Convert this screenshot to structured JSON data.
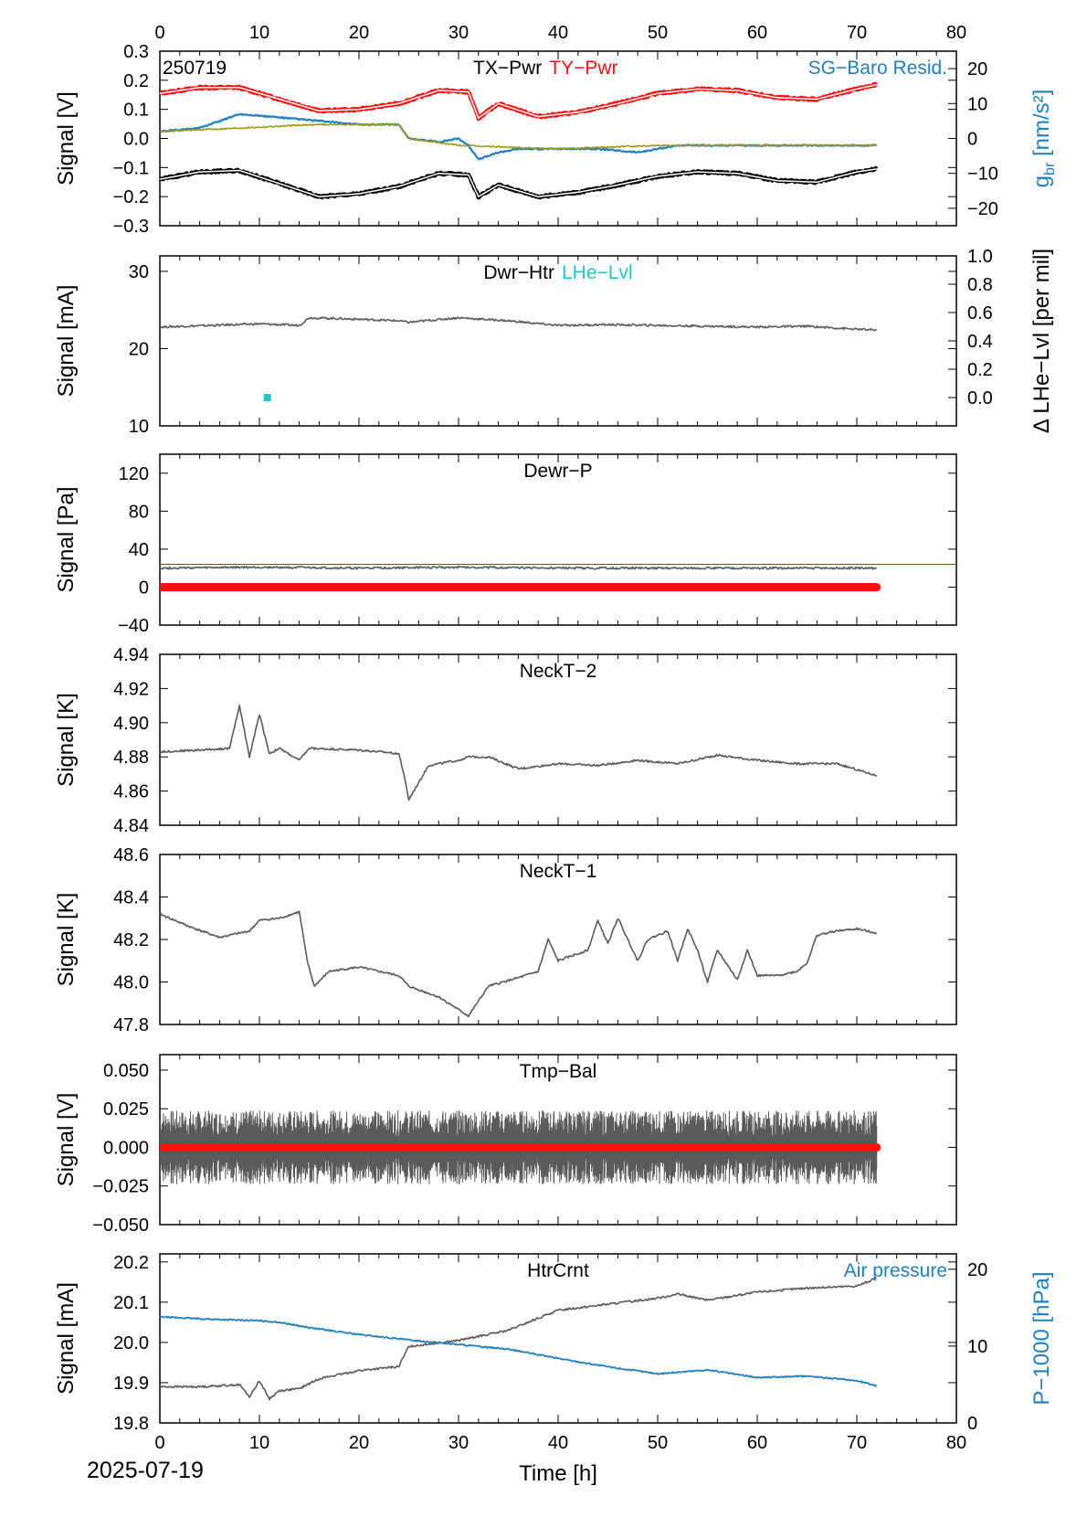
{
  "footer": {
    "date": "2025-07-19"
  },
  "colors": {
    "black": "#000000",
    "gray": "#5a5a5a",
    "red": "#ff1010",
    "blue": "#1f7fbf",
    "cyan": "#1ec8c8",
    "olive": "#9a9a1a"
  },
  "chart_data": [
    {
      "id": "p1",
      "type": "line",
      "tag": "250719",
      "titles": [
        {
          "text": "TX−Pwr",
          "color": "black"
        },
        {
          "text": "TY−Pwr",
          "color": "red"
        }
      ],
      "right_title": {
        "text": "SG−Baro Resid.",
        "color": "blue"
      },
      "ylabel": "Signal [V]",
      "ylim": [
        -0.3,
        0.3
      ],
      "yticks": [
        "−0.3",
        "−0.2",
        "−0.1",
        "0.0",
        "0.1",
        "0.2",
        "0.3"
      ],
      "y2label_main": "g",
      "y2label_sub": "br",
      "y2label_unit": " [nm/s²]",
      "y2lim": [
        -25,
        25
      ],
      "y2ticks": [
        "−20",
        "−10",
        "0",
        "10",
        "20"
      ],
      "xlim": [
        0,
        80
      ],
      "series": [
        {
          "name": "TY−Pwr",
          "color": "red",
          "axis": "left",
          "x": [
            0,
            4,
            8,
            12,
            16,
            20,
            24,
            28,
            31,
            32,
            34,
            38,
            42,
            46,
            50,
            54,
            58,
            62,
            66,
            70,
            72
          ],
          "y": [
            0.155,
            0.175,
            0.175,
            0.135,
            0.095,
            0.1,
            0.12,
            0.165,
            0.16,
            0.07,
            0.12,
            0.075,
            0.09,
            0.12,
            0.155,
            0.17,
            0.165,
            0.14,
            0.135,
            0.17,
            0.185
          ]
        },
        {
          "name": "TX−Pwr",
          "color": "black",
          "axis": "left",
          "x": [
            0,
            4,
            8,
            12,
            16,
            20,
            24,
            28,
            31,
            32,
            34,
            38,
            42,
            46,
            50,
            54,
            58,
            62,
            66,
            70,
            72
          ],
          "y": [
            -0.14,
            -0.115,
            -0.11,
            -0.155,
            -0.2,
            -0.19,
            -0.165,
            -0.12,
            -0.125,
            -0.2,
            -0.16,
            -0.2,
            -0.185,
            -0.16,
            -0.13,
            -0.115,
            -0.12,
            -0.145,
            -0.15,
            -0.115,
            -0.105
          ]
        },
        {
          "name": "SG−Baro Resid.",
          "color": "blue",
          "axis": "right",
          "x": [
            0,
            4,
            8,
            12,
            16,
            20,
            24,
            25,
            28,
            30,
            31,
            32,
            34,
            36,
            40,
            44,
            48,
            52,
            56,
            60,
            64,
            68,
            72
          ],
          "y": [
            2,
            3,
            7,
            6,
            5,
            4,
            4,
            0,
            -1,
            0,
            -2,
            -6,
            -4,
            -3,
            -3,
            -3,
            -4,
            -2,
            -2,
            -2,
            -2,
            -2,
            -2
          ]
        },
        {
          "name": "",
          "color": "olive",
          "axis": "right",
          "x": [
            0,
            8,
            16,
            24,
            25,
            30,
            40,
            50,
            60,
            72
          ],
          "y": [
            2,
            3,
            4,
            4,
            0,
            -2,
            -3,
            -2,
            -2,
            -2
          ]
        }
      ]
    },
    {
      "id": "p2",
      "type": "line",
      "titles": [
        {
          "text": "Dwr−Htr",
          "color": "black"
        },
        {
          "text": "LHe−Lvl",
          "color": "cyan"
        }
      ],
      "ylabel": "Signal [mA]",
      "ylim": [
        10,
        32
      ],
      "yticks": [
        "10",
        "20",
        "30"
      ],
      "y2label": "Δ LHe−Lvl [per mil]",
      "y2lim": [
        -0.2,
        1.0
      ],
      "y2ticks": [
        "0.0",
        "0.2",
        "0.4",
        "0.6",
        "0.8",
        "1.0"
      ],
      "xlim": [
        0,
        80
      ],
      "series": [
        {
          "name": "Dwr−Htr",
          "color": "gray",
          "axis": "left",
          "x": [
            0,
            5,
            10,
            14,
            15,
            20,
            24,
            25,
            30,
            35,
            40,
            45,
            50,
            55,
            60,
            65,
            70,
            72
          ],
          "y": [
            22.8,
            23.0,
            23.2,
            23.0,
            24.0,
            23.8,
            23.6,
            23.4,
            24.0,
            23.6,
            23.0,
            23.1,
            23.0,
            22.9,
            22.8,
            22.9,
            22.5,
            22.4
          ]
        },
        {
          "name": "LHe−Lvl",
          "color": "cyan",
          "axis": "right",
          "x": [
            10.8
          ],
          "y": [
            0.0
          ]
        }
      ]
    },
    {
      "id": "p3",
      "type": "line",
      "titles": [
        {
          "text": "Dewr−P",
          "color": "black"
        }
      ],
      "ylabel": "Signal [Pa]",
      "ylim": [
        -40,
        140
      ],
      "yticks": [
        "−40",
        "0",
        "40",
        "80",
        "120"
      ],
      "xlim": [
        0,
        80
      ],
      "series": [
        {
          "name": "Dewr−P",
          "color": "gray",
          "axis": "left",
          "x": [
            0,
            10,
            20,
            30,
            40,
            50,
            60,
            72
          ],
          "y": [
            20,
            21,
            20,
            21,
            20,
            20,
            20,
            20
          ]
        },
        {
          "name": "",
          "color": "red",
          "axis": "left",
          "x": [
            0,
            72
          ],
          "y": [
            0,
            0
          ]
        }
      ],
      "reference_y": 24
    },
    {
      "id": "p4",
      "type": "line",
      "titles": [
        {
          "text": "NeckT−2",
          "color": "black"
        }
      ],
      "ylabel": "Signal [K]",
      "ylim": [
        4.84,
        4.94
      ],
      "yticks": [
        "4.84",
        "4.86",
        "4.88",
        "4.90",
        "4.92",
        "4.94"
      ],
      "xlim": [
        0,
        80
      ],
      "series": [
        {
          "name": "NeckT−2",
          "color": "gray",
          "axis": "left",
          "x": [
            0,
            4,
            7,
            8,
            9,
            10,
            11,
            12,
            14,
            15,
            20,
            24,
            24.5,
            25,
            27,
            30,
            31,
            33,
            36,
            40,
            44,
            48,
            52,
            56,
            60,
            64,
            68,
            72
          ],
          "y": [
            4.883,
            4.884,
            4.885,
            4.91,
            4.88,
            4.905,
            4.882,
            4.885,
            4.878,
            4.885,
            4.884,
            4.882,
            4.87,
            4.855,
            4.875,
            4.878,
            4.88,
            4.88,
            4.873,
            4.876,
            4.875,
            4.878,
            4.876,
            4.881,
            4.878,
            4.876,
            4.876,
            4.869
          ]
        }
      ]
    },
    {
      "id": "p5",
      "type": "line",
      "titles": [
        {
          "text": "NeckT−1",
          "color": "black"
        }
      ],
      "ylabel": "Signal [K]",
      "ylim": [
        47.8,
        48.6
      ],
      "yticks": [
        "47.8",
        "48.0",
        "48.2",
        "48.4",
        "48.6"
      ],
      "xlim": [
        0,
        80
      ],
      "series": [
        {
          "name": "NeckT−1",
          "color": "gray",
          "axis": "left",
          "x": [
            0,
            3,
            6,
            9,
            10,
            12,
            14,
            14.8,
            15.5,
            17,
            20,
            24,
            25,
            28,
            31,
            33,
            36,
            38,
            39,
            40,
            43,
            44,
            45,
            46,
            47,
            48,
            49,
            51,
            52,
            53,
            54,
            55,
            56,
            58,
            59,
            60,
            62,
            64,
            65,
            66,
            68,
            70,
            72
          ],
          "y": [
            48.32,
            48.26,
            48.21,
            48.24,
            48.29,
            48.3,
            48.33,
            48.1,
            47.98,
            48.05,
            48.07,
            48.03,
            47.98,
            47.93,
            47.84,
            47.98,
            48.02,
            48.05,
            48.2,
            48.1,
            48.15,
            48.29,
            48.18,
            48.3,
            48.2,
            48.1,
            48.2,
            48.24,
            48.1,
            48.25,
            48.15,
            48.0,
            48.15,
            48.01,
            48.15,
            48.03,
            48.03,
            48.05,
            48.09,
            48.22,
            48.24,
            48.25,
            48.23
          ]
        }
      ]
    },
    {
      "id": "p6",
      "type": "line",
      "titles": [
        {
          "text": "Tmp−Bal",
          "color": "black"
        }
      ],
      "ylabel": "Signal [V]",
      "ylim": [
        -0.05,
        0.06
      ],
      "yticks": [
        "−0.050",
        "−0.025",
        "0.000",
        "0.025",
        "0.050"
      ],
      "xlim": [
        0,
        80
      ],
      "series": [
        {
          "name": "Tmp−Bal",
          "color": "gray",
          "axis": "left",
          "x": [
            0,
            72
          ],
          "y": [
            0.0,
            0.0
          ],
          "noise_amplitude": 0.012
        },
        {
          "name": "",
          "color": "red",
          "axis": "left",
          "x": [
            0,
            72
          ],
          "y": [
            0,
            0
          ]
        }
      ]
    },
    {
      "id": "p7",
      "type": "line",
      "titles": [
        {
          "text": "HtrCrnt",
          "color": "black"
        }
      ],
      "right_title": {
        "text": "Air pressure",
        "color": "blue"
      },
      "ylabel": "Signal [mA]",
      "ylim": [
        19.8,
        20.22
      ],
      "yticks": [
        "19.8",
        "19.9",
        "20.0",
        "20.1",
        "20.2"
      ],
      "y2label": "P−1000 [hPa]",
      "y2lim": [
        0,
        22
      ],
      "y2ticks": [
        "0",
        "10",
        "20"
      ],
      "xlim": [
        0,
        80
      ],
      "xlabel": "Time [h]",
      "series": [
        {
          "name": "HtrCrnt",
          "color": "gray",
          "axis": "left",
          "x": [
            0,
            4,
            8,
            9,
            10,
            11,
            12,
            14,
            16,
            20,
            24,
            25,
            30,
            35,
            40,
            45,
            50,
            52,
            55,
            60,
            65,
            70,
            72
          ],
          "y": [
            19.89,
            19.89,
            19.895,
            19.865,
            19.905,
            19.86,
            19.88,
            19.885,
            19.91,
            19.93,
            19.94,
            19.99,
            20.005,
            20.03,
            20.08,
            20.095,
            20.11,
            20.12,
            20.105,
            20.125,
            20.135,
            20.14,
            20.16
          ]
        },
        {
          "name": "Air pressure",
          "color": "blue",
          "axis": "right",
          "x": [
            0,
            5,
            10,
            12,
            15,
            20,
            25,
            30,
            35,
            40,
            45,
            50,
            55,
            60,
            65,
            70,
            72
          ],
          "y": [
            13.8,
            13.5,
            13.3,
            13.1,
            12.4,
            11.5,
            10.8,
            10.2,
            9.6,
            8.4,
            7.3,
            6.4,
            6.9,
            5.9,
            6.1,
            5.5,
            4.8
          ]
        }
      ]
    }
  ],
  "xticks": [
    "0",
    "10",
    "20",
    "30",
    "40",
    "50",
    "60",
    "70",
    "80"
  ]
}
